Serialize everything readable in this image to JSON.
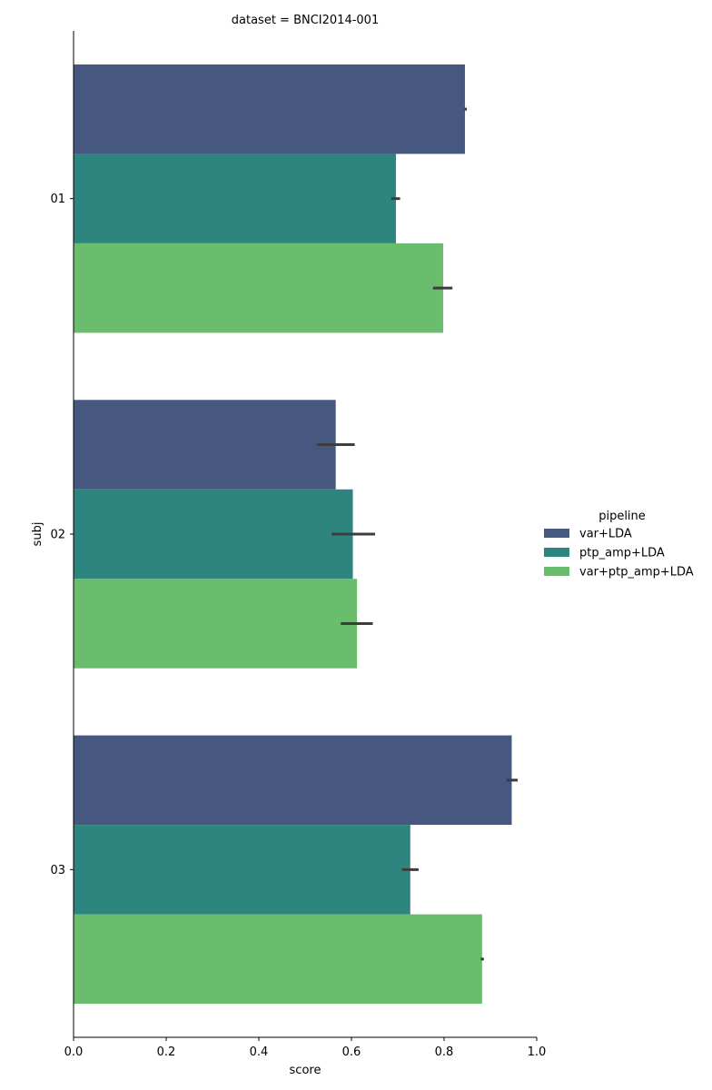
{
  "chart_data": {
    "type": "bar",
    "orientation": "horizontal",
    "title": "dataset = BNCI2014-001",
    "xlabel": "score",
    "ylabel": "subj",
    "xlim": [
      0.0,
      1.0
    ],
    "xticks": [
      "0.0",
      "0.2",
      "0.4",
      "0.6",
      "0.8",
      "1.0"
    ],
    "categories": [
      "01",
      "02",
      "03"
    ],
    "grid": false,
    "legend": {
      "title": "pipeline",
      "placement": "right"
    },
    "series": [
      {
        "name": "var+LDA",
        "color": "#46587f",
        "values": [
          0.845,
          0.566,
          0.946
        ],
        "error": [
          [
            0.844,
            0.849
          ],
          [
            0.525,
            0.607
          ],
          [
            0.934,
            0.959
          ]
        ]
      },
      {
        "name": "ptp_amp+LDA",
        "color": "#2e847f",
        "values": [
          0.696,
          0.603,
          0.727
        ],
        "error": [
          [
            0.686,
            0.705
          ],
          [
            0.557,
            0.651
          ],
          [
            0.709,
            0.745
          ]
        ]
      },
      {
        "name": "var+ptp_amp+LDA",
        "color": "#6abd6d",
        "values": [
          0.798,
          0.612,
          0.882
        ],
        "error": [
          [
            0.776,
            0.818
          ],
          [
            0.577,
            0.646
          ],
          [
            0.879,
            0.886
          ]
        ]
      }
    ]
  }
}
